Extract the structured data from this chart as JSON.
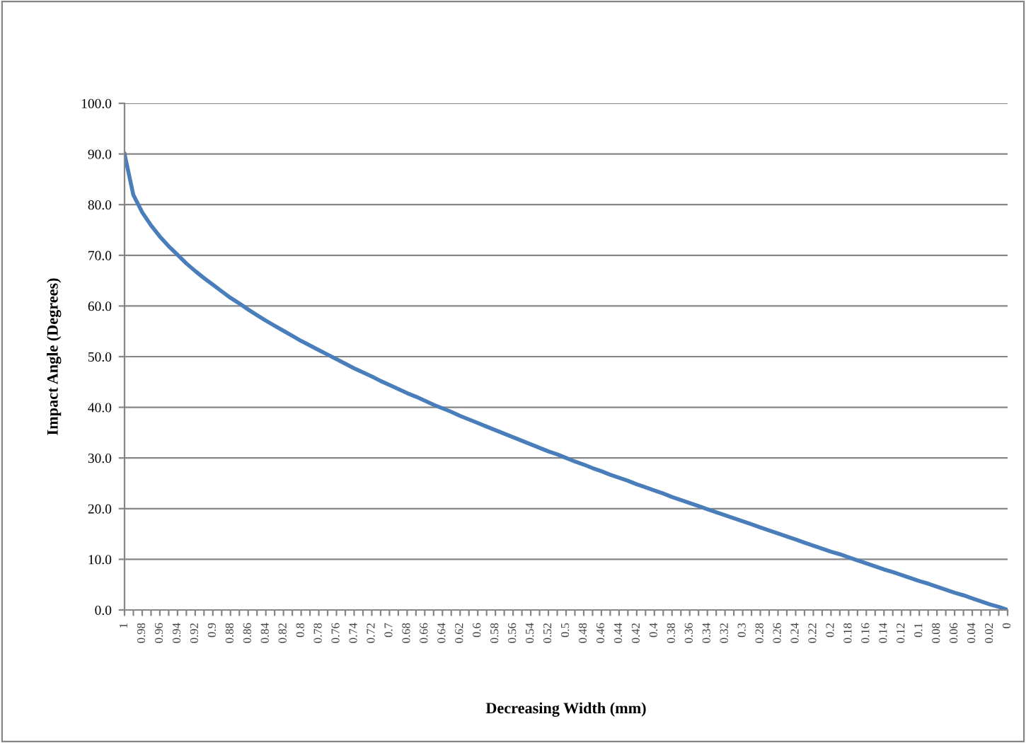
{
  "chart_data": {
    "type": "line",
    "xlabel": "Decreasing Width (mm)",
    "ylabel": "Impact Angle (Degrees)",
    "categories": [
      "1",
      null,
      "0.98",
      null,
      "0.96",
      null,
      "0.94",
      null,
      "0.92",
      null,
      "0.9",
      null,
      "0.88",
      null,
      "0.86",
      null,
      "0.84",
      null,
      "0.82",
      null,
      "0.8",
      null,
      "0.78",
      null,
      "0.76",
      null,
      "0.74",
      null,
      "0.72",
      null,
      "0.7",
      null,
      "0.68",
      null,
      "0.66",
      null,
      "0.64",
      null,
      "0.62",
      null,
      "0.6",
      null,
      "0.58",
      null,
      "0.56",
      null,
      "0.54",
      null,
      "0.52",
      null,
      "0.5",
      null,
      "0.48",
      null,
      "0.46",
      null,
      "0.44",
      null,
      "0.42",
      null,
      "0.4",
      null,
      "0.38",
      null,
      "0.36",
      null,
      "0.34",
      null,
      "0.32",
      null,
      "0.3",
      null,
      "0.28",
      null,
      "0.26",
      null,
      "0.24",
      null,
      "0.22",
      null,
      "0.2",
      null,
      "0.18",
      null,
      "0.16",
      null,
      "0.14",
      null,
      "0.12",
      null,
      "0.1",
      null,
      "0.08",
      null,
      "0.06",
      null,
      "0.04",
      null,
      "0.02",
      null,
      "0"
    ],
    "series": [
      {
        "color": "#4a7ebb",
        "values": [
          90,
          81.9,
          78.5,
          75.9,
          73.7,
          71.8,
          70.1,
          68.4,
          66.9,
          65.5,
          64.2,
          62.9,
          61.6,
          60.5,
          59.3,
          58.2,
          57.1,
          56.1,
          55.1,
          54.1,
          53.1,
          52.2,
          51.3,
          50.4,
          49.5,
          48.6,
          47.7,
          46.9,
          46.1,
          45.2,
          44.4,
          43.6,
          42.8,
          42.1,
          41.3,
          40.5,
          39.8,
          39.1,
          38.3,
          37.6,
          36.9,
          36.2,
          35.5,
          34.8,
          34.1,
          33.4,
          32.7,
          32.0,
          31.3,
          30.7,
          30.0,
          29.3,
          28.7,
          28.0,
          27.4,
          26.7,
          26.1,
          25.5,
          24.8,
          24.2,
          23.6,
          23.0,
          22.3,
          21.7,
          21.1,
          20.5,
          19.9,
          19.3,
          18.7,
          18.1,
          17.5,
          16.9,
          16.3,
          15.7,
          15.1,
          14.5,
          13.9,
          13.3,
          12.7,
          12.1,
          11.5,
          11.0,
          10.4,
          9.8,
          9.2,
          8.6,
          8.0,
          7.5,
          6.9,
          6.3,
          5.7,
          5.2,
          4.6,
          4.0,
          3.4,
          2.9,
          2.3,
          1.7,
          1.1,
          0.6,
          0
        ]
      }
    ],
    "ylim": [
      0,
      100
    ],
    "yticks": [
      {
        "value": 0,
        "label": "0.0"
      },
      {
        "value": 10,
        "label": "10.0"
      },
      {
        "value": 20,
        "label": "20.0"
      },
      {
        "value": 30,
        "label": "30.0"
      },
      {
        "value": 40,
        "label": "40.0"
      },
      {
        "value": 50,
        "label": "50.0"
      },
      {
        "value": 60,
        "label": "60.0"
      },
      {
        "value": 70,
        "label": "70.0"
      },
      {
        "value": 80,
        "label": "80.0"
      },
      {
        "value": 90,
        "label": "90.0"
      },
      {
        "value": 100,
        "label": "100.0"
      }
    ],
    "grid": "y",
    "legend": false,
    "marker": "none",
    "line_style": "solid"
  }
}
